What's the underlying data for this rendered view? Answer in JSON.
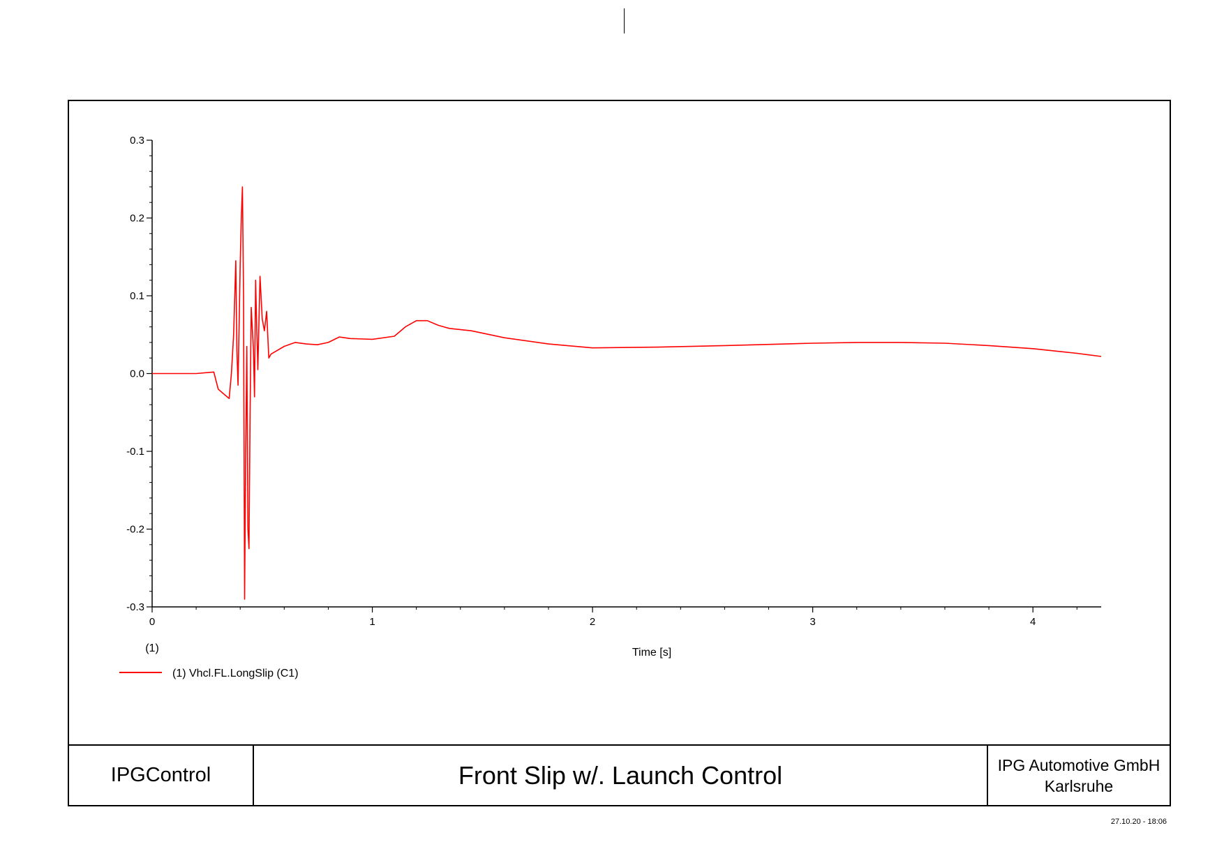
{
  "chart_data": {
    "type": "line",
    "title": "",
    "xlabel": "Time [s]",
    "ylabel": "",
    "xlim": [
      0,
      4.31
    ],
    "ylim": [
      -0.3,
      0.3
    ],
    "x_ticks": [
      0,
      1,
      2,
      3,
      4
    ],
    "x_tick_labels": [
      "0",
      "1",
      "2",
      "3",
      "4"
    ],
    "y_ticks": [
      -0.3,
      -0.2,
      -0.1,
      0.0,
      0.1,
      0.2,
      0.3
    ],
    "y_tick_labels": [
      "-0.3",
      "-0.2",
      "-0.1",
      "0.0",
      "0.1",
      "0.2",
      "0.3"
    ],
    "axis_marker": "(1)",
    "grid": false,
    "legend_position": "bottom-left",
    "series": [
      {
        "name": "(1) Vhcl.FL.LongSlip (C1)",
        "color": "#ff0000",
        "x": [
          0,
          0.1,
          0.2,
          0.28,
          0.3,
          0.32,
          0.35,
          0.36,
          0.37,
          0.38,
          0.385,
          0.39,
          0.4,
          0.405,
          0.41,
          0.415,
          0.42,
          0.425,
          0.43,
          0.435,
          0.44,
          0.445,
          0.45,
          0.46,
          0.465,
          0.47,
          0.475,
          0.48,
          0.49,
          0.5,
          0.51,
          0.52,
          0.53,
          0.54,
          0.6,
          0.65,
          0.7,
          0.75,
          0.8,
          0.85,
          0.9,
          1.0,
          1.1,
          1.15,
          1.2,
          1.25,
          1.3,
          1.35,
          1.45,
          1.6,
          1.8,
          2.0,
          2.3,
          2.6,
          3.0,
          3.2,
          3.4,
          3.6,
          3.8,
          4.0,
          4.2,
          4.31
        ],
        "y": [
          0,
          0,
          0,
          0.002,
          -0.02,
          -0.025,
          -0.032,
          0.0,
          0.05,
          0.145,
          0.03,
          -0.015,
          0.14,
          0.2,
          0.24,
          0.1,
          -0.29,
          -0.1,
          0.035,
          -0.2,
          -0.225,
          -0.05,
          0.085,
          0.03,
          -0.03,
          0.12,
          0.06,
          0.005,
          0.125,
          0.07,
          0.055,
          0.08,
          0.02,
          0.025,
          0.035,
          0.04,
          0.038,
          0.037,
          0.04,
          0.047,
          0.045,
          0.044,
          0.048,
          0.06,
          0.068,
          0.068,
          0.062,
          0.058,
          0.055,
          0.046,
          0.038,
          0.033,
          0.034,
          0.036,
          0.039,
          0.04,
          0.04,
          0.039,
          0.036,
          0.032,
          0.026,
          0.022
        ]
      }
    ]
  },
  "title_block": {
    "left": "IPGControl",
    "center": "Front Slip w/. Launch Control",
    "right_line1": "IPG Automotive GmbH",
    "right_line2": "Karlsruhe"
  },
  "timestamp": "27.10.20 - 18:06"
}
